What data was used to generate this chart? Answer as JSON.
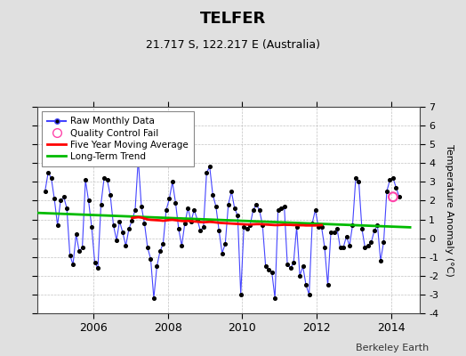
{
  "title": "TELFER",
  "subtitle": "21.717 S, 122.217 E (Australia)",
  "ylabel": "Temperature Anomaly (°C)",
  "credit": "Berkeley Earth",
  "ylim": [
    -4,
    7
  ],
  "yticks": [
    -4,
    -3,
    -2,
    -1,
    0,
    1,
    2,
    3,
    4,
    5,
    6,
    7
  ],
  "bg_color": "#e0e0e0",
  "plot_bg_color": "#ffffff",
  "raw_color": "#4444ff",
  "raw_marker_color": "#000000",
  "moving_avg_color": "#ff0000",
  "trend_color": "#00bb00",
  "qc_color": "#ff44aa",
  "raw_data": [
    [
      2004.708,
      2.5
    ],
    [
      2004.792,
      3.5
    ],
    [
      2004.875,
      3.2
    ],
    [
      2004.958,
      2.1
    ],
    [
      2005.042,
      0.7
    ],
    [
      2005.125,
      2.0
    ],
    [
      2005.208,
      2.2
    ],
    [
      2005.292,
      1.6
    ],
    [
      2005.375,
      -0.9
    ],
    [
      2005.458,
      -1.4
    ],
    [
      2005.542,
      0.2
    ],
    [
      2005.625,
      -0.7
    ],
    [
      2005.708,
      -0.5
    ],
    [
      2005.792,
      3.1
    ],
    [
      2005.875,
      2.0
    ],
    [
      2005.958,
      0.6
    ],
    [
      2006.042,
      -1.3
    ],
    [
      2006.125,
      -1.6
    ],
    [
      2006.208,
      1.8
    ],
    [
      2006.292,
      3.2
    ],
    [
      2006.375,
      3.1
    ],
    [
      2006.458,
      2.3
    ],
    [
      2006.542,
      0.7
    ],
    [
      2006.625,
      -0.1
    ],
    [
      2006.708,
      0.9
    ],
    [
      2006.792,
      0.3
    ],
    [
      2006.875,
      -0.4
    ],
    [
      2006.958,
      0.5
    ],
    [
      2007.042,
      0.95
    ],
    [
      2007.125,
      1.5
    ],
    [
      2007.208,
      4.2
    ],
    [
      2007.292,
      1.7
    ],
    [
      2007.375,
      0.8
    ],
    [
      2007.458,
      -0.5
    ],
    [
      2007.542,
      -1.1
    ],
    [
      2007.625,
      -3.2
    ],
    [
      2007.708,
      -1.5
    ],
    [
      2007.792,
      -0.7
    ],
    [
      2007.875,
      -0.3
    ],
    [
      2007.958,
      1.5
    ],
    [
      2008.042,
      2.1
    ],
    [
      2008.125,
      3.0
    ],
    [
      2008.208,
      1.9
    ],
    [
      2008.292,
      0.5
    ],
    [
      2008.375,
      -0.4
    ],
    [
      2008.458,
      0.8
    ],
    [
      2008.542,
      1.6
    ],
    [
      2008.625,
      0.9
    ],
    [
      2008.708,
      1.5
    ],
    [
      2008.792,
      1.0
    ],
    [
      2008.875,
      0.4
    ],
    [
      2008.958,
      0.6
    ],
    [
      2009.042,
      3.5
    ],
    [
      2009.125,
      3.8
    ],
    [
      2009.208,
      2.3
    ],
    [
      2009.292,
      1.7
    ],
    [
      2009.375,
      0.4
    ],
    [
      2009.458,
      -0.8
    ],
    [
      2009.542,
      -0.3
    ],
    [
      2009.625,
      1.8
    ],
    [
      2009.708,
      2.5
    ],
    [
      2009.792,
      1.6
    ],
    [
      2009.875,
      1.2
    ],
    [
      2009.958,
      -3.0
    ],
    [
      2010.042,
      0.6
    ],
    [
      2010.125,
      0.5
    ],
    [
      2010.208,
      0.7
    ],
    [
      2010.292,
      1.5
    ],
    [
      2010.375,
      1.8
    ],
    [
      2010.458,
      1.5
    ],
    [
      2010.542,
      0.7
    ],
    [
      2010.625,
      -1.5
    ],
    [
      2010.708,
      -1.7
    ],
    [
      2010.792,
      -1.8
    ],
    [
      2010.875,
      -3.2
    ],
    [
      2010.958,
      1.5
    ],
    [
      2011.042,
      1.6
    ],
    [
      2011.125,
      1.7
    ],
    [
      2011.208,
      -1.4
    ],
    [
      2011.292,
      -1.6
    ],
    [
      2011.375,
      -1.3
    ],
    [
      2011.458,
      0.6
    ],
    [
      2011.542,
      -2.0
    ],
    [
      2011.625,
      -1.5
    ],
    [
      2011.708,
      -2.5
    ],
    [
      2011.792,
      -3.0
    ],
    [
      2011.875,
      0.8
    ],
    [
      2011.958,
      1.5
    ],
    [
      2012.042,
      0.6
    ],
    [
      2012.125,
      0.6
    ],
    [
      2012.208,
      -0.5
    ],
    [
      2012.292,
      -2.5
    ],
    [
      2012.375,
      0.3
    ],
    [
      2012.458,
      0.3
    ],
    [
      2012.542,
      0.5
    ],
    [
      2012.625,
      -0.5
    ],
    [
      2012.708,
      -0.5
    ],
    [
      2012.792,
      0.1
    ],
    [
      2012.875,
      -0.4
    ],
    [
      2012.958,
      0.7
    ],
    [
      2013.042,
      3.2
    ],
    [
      2013.125,
      3.0
    ],
    [
      2013.208,
      0.5
    ],
    [
      2013.292,
      -0.5
    ],
    [
      2013.375,
      -0.4
    ],
    [
      2013.458,
      -0.2
    ],
    [
      2013.542,
      0.4
    ],
    [
      2013.625,
      0.7
    ],
    [
      2013.708,
      -1.2
    ],
    [
      2013.792,
      -0.2
    ],
    [
      2013.875,
      2.5
    ],
    [
      2013.958,
      3.1
    ],
    [
      2014.042,
      3.2
    ],
    [
      2014.125,
      2.7
    ],
    [
      2014.208,
      2.2
    ]
  ],
  "qc_fail": [
    [
      2014.042,
      2.2
    ]
  ],
  "moving_avg": [
    [
      2007.042,
      1.08
    ],
    [
      2007.125,
      1.1
    ],
    [
      2007.208,
      1.12
    ],
    [
      2007.292,
      1.1
    ],
    [
      2007.375,
      1.05
    ],
    [
      2007.458,
      1.0
    ],
    [
      2007.542,
      0.98
    ],
    [
      2007.625,
      0.97
    ],
    [
      2007.708,
      0.96
    ],
    [
      2007.792,
      0.95
    ],
    [
      2007.875,
      0.93
    ],
    [
      2007.958,
      0.95
    ],
    [
      2008.042,
      0.97
    ],
    [
      2008.125,
      0.98
    ],
    [
      2008.208,
      0.96
    ],
    [
      2008.292,
      0.94
    ],
    [
      2008.375,
      0.92
    ],
    [
      2008.458,
      0.91
    ],
    [
      2008.542,
      0.92
    ],
    [
      2008.625,
      0.91
    ],
    [
      2008.708,
      0.89
    ],
    [
      2008.792,
      0.88
    ],
    [
      2008.875,
      0.86
    ],
    [
      2008.958,
      0.85
    ],
    [
      2009.042,
      0.86
    ],
    [
      2009.125,
      0.87
    ],
    [
      2009.208,
      0.86
    ],
    [
      2009.292,
      0.84
    ],
    [
      2009.375,
      0.82
    ],
    [
      2009.458,
      0.81
    ],
    [
      2009.542,
      0.8
    ],
    [
      2009.625,
      0.79
    ],
    [
      2009.708,
      0.78
    ],
    [
      2009.792,
      0.77
    ],
    [
      2009.875,
      0.76
    ],
    [
      2009.958,
      0.75
    ],
    [
      2010.042,
      0.74
    ],
    [
      2010.125,
      0.73
    ],
    [
      2010.208,
      0.73
    ],
    [
      2010.292,
      0.74
    ],
    [
      2010.375,
      0.75
    ],
    [
      2010.458,
      0.75
    ],
    [
      2010.542,
      0.74
    ],
    [
      2010.625,
      0.73
    ],
    [
      2010.708,
      0.72
    ],
    [
      2010.792,
      0.71
    ],
    [
      2010.875,
      0.7
    ],
    [
      2010.958,
      0.7
    ],
    [
      2011.042,
      0.71
    ],
    [
      2011.125,
      0.72
    ],
    [
      2011.208,
      0.71
    ],
    [
      2011.292,
      0.71
    ],
    [
      2011.375,
      0.7
    ],
    [
      2011.458,
      0.7
    ],
    [
      2011.542,
      0.69
    ],
    [
      2011.625,
      0.69
    ],
    [
      2011.708,
      0.68
    ],
    [
      2011.792,
      0.68
    ],
    [
      2011.875,
      0.68
    ],
    [
      2011.958,
      0.68
    ],
    [
      2012.042,
      0.69
    ],
    [
      2012.125,
      0.7
    ]
  ],
  "trend": {
    "x": [
      2004.5,
      2014.5
    ],
    "y": [
      1.35,
      0.58
    ]
  },
  "xticks": [
    2006,
    2008,
    2010,
    2012,
    2014
  ],
  "xlim": [
    2004.5,
    2014.75
  ],
  "legend_labels": [
    "Raw Monthly Data",
    "Quality Control Fail",
    "Five Year Moving Average",
    "Long-Term Trend"
  ]
}
